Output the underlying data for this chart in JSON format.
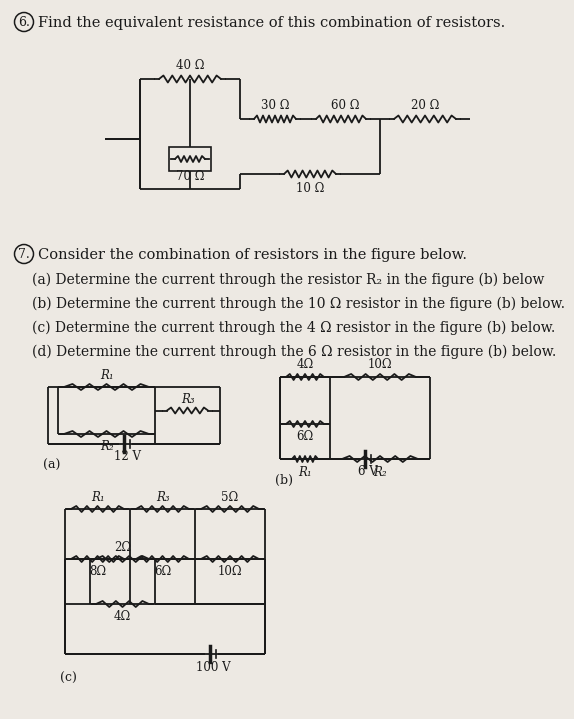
{
  "bg_color": "#ede9e3",
  "text_color": "#1a1a1a",
  "title6": "Find the equivalent resistance of this combination of resistors.",
  "title7": "Consider the combination of resistors in the figure below.",
  "q7a": "(a) Determine the current through the resistor R₂ in the figure (b) below",
  "q7b": "(b) Determine the current through the 10 Ω resistor in the figure (b) below.",
  "q7c": "(c) Determine the current through the 4 Ω resistor in the figure (b) below.",
  "q7d": "(d) Determine the current through the 6 Ω resistor in the figure (b) below."
}
